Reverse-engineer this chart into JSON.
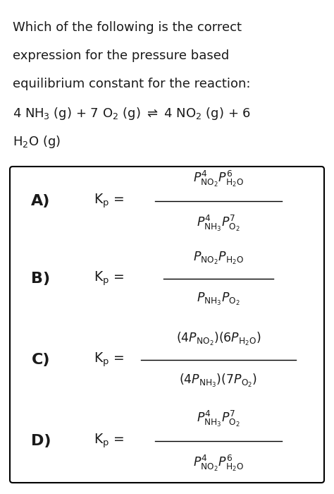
{
  "bg_color": "#ffffff",
  "text_color": "#1a1a1a",
  "question_lines": [
    "Which of the following is the correct",
    "expression for the pressure based",
    "equilibrium constant for the reaction:",
    "4 NH$_3$ (g) + 7 O$_2$ (g) $\\rightleftharpoons$ 4 NO$_2$ (g) + 6",
    "H$_2$O (g)"
  ],
  "box_color": "#000000",
  "fig_width": 4.74,
  "fig_height": 7.0,
  "q_fontsize": 13.0,
  "opt_label_fontsize": 16,
  "eq_fontsize": 12.5
}
